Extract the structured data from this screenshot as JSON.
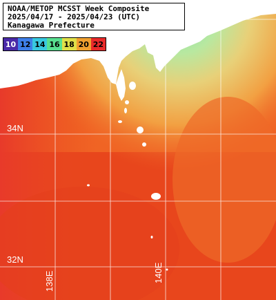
{
  "title": {
    "line1": "NOAA/METOP MCSST Week Composite",
    "line2": "2025/04/17 - 2025/04/23 (UTC)",
    "line3": "Kanagawa Prefecture"
  },
  "legend": {
    "items": [
      {
        "label": "10",
        "color": "#4a2aa8"
      },
      {
        "label": "12",
        "color": "#3e7fe8"
      },
      {
        "label": "14",
        "color": "#38c8e0"
      },
      {
        "label": "16",
        "color": "#58e090"
      },
      {
        "label": "18",
        "color": "#e0e048"
      },
      {
        "label": "20",
        "color": "#f0a030"
      },
      {
        "label": "22",
        "color": "#e82a2a"
      }
    ]
  },
  "grid": {
    "lat_labels": [
      "34N",
      "32N"
    ],
    "lon_labels": [
      "138E",
      "140E"
    ]
  },
  "colors": {
    "ocean_warm": "#e8401c",
    "ocean_mid": "#f06a1e",
    "coastal_cool": "#e8c870",
    "coastal_cold": "#8ce0a8",
    "land": "#ffffff",
    "grid_line": "#ffffff"
  }
}
